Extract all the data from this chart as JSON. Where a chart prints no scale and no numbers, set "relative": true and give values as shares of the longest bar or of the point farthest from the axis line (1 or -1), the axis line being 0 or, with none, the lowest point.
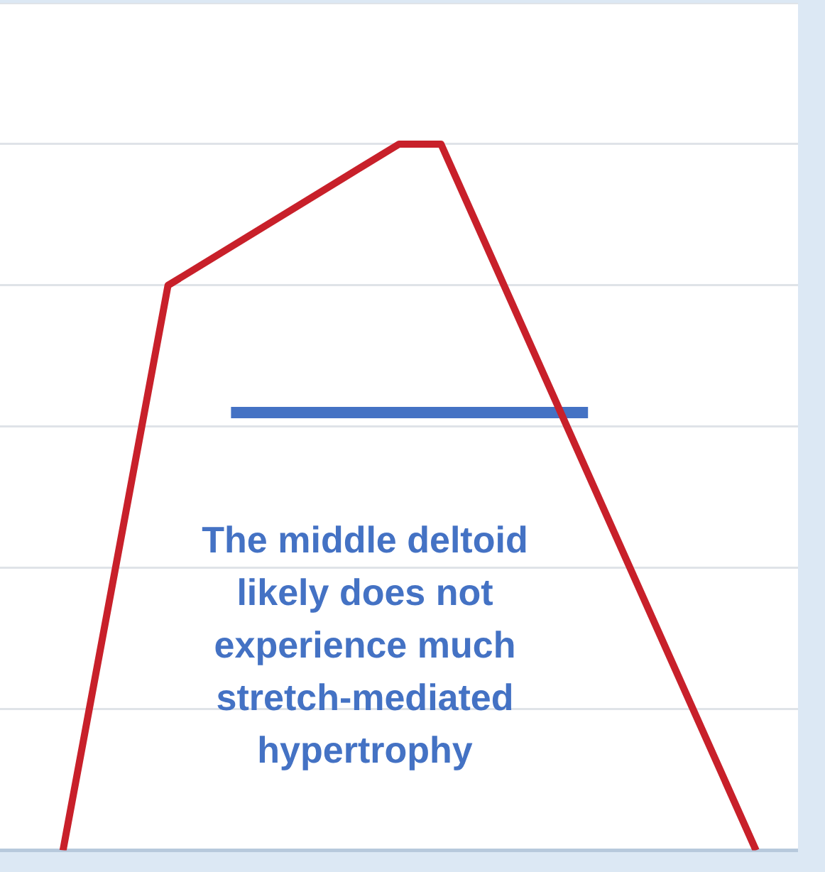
{
  "chart_data": {
    "type": "line",
    "relative": true,
    "categories": [
      null,
      null,
      null,
      null,
      null,
      null,
      null,
      null,
      null,
      null,
      null,
      null,
      null,
      null,
      null,
      null,
      null,
      null,
      null,
      null,
      null,
      null,
      null,
      null,
      null,
      null,
      null,
      null,
      null,
      null,
      null,
      null,
      null,
      null,
      null,
      null,
      null,
      null,
      null
    ],
    "grid": "y",
    "legend": false,
    "marker": "none",
    "line_style": "solid",
    "series": [
      {
        "color": "#c8202a",
        "values": [
          null,
          null,
          null,
          0,
          null,
          null,
          null,
          null,
          0.8,
          null,
          null,
          null,
          null,
          null,
          null,
          null,
          null,
          null,
          null,
          1,
          null,
          1,
          null,
          null,
          null,
          null,
          null,
          null,
          null,
          null,
          null,
          null,
          null,
          null,
          null,
          null,
          0,
          null,
          null
        ]
      },
      {
        "color": "#4472c4",
        "values": [
          null,
          null,
          null,
          null,
          null,
          null,
          null,
          null,
          null,
          null,
          null,
          0.62,
          null,
          null,
          null,
          null,
          null,
          null,
          null,
          null,
          null,
          null,
          null,
          null,
          null,
          null,
          null,
          null,
          0.62,
          null,
          null,
          null,
          null,
          null,
          null,
          null,
          null,
          null,
          null
        ]
      }
    ],
    "annotations": [
      "The middle deltoid likely does not experience much stretch-mediated hypertrophy"
    ]
  }
}
